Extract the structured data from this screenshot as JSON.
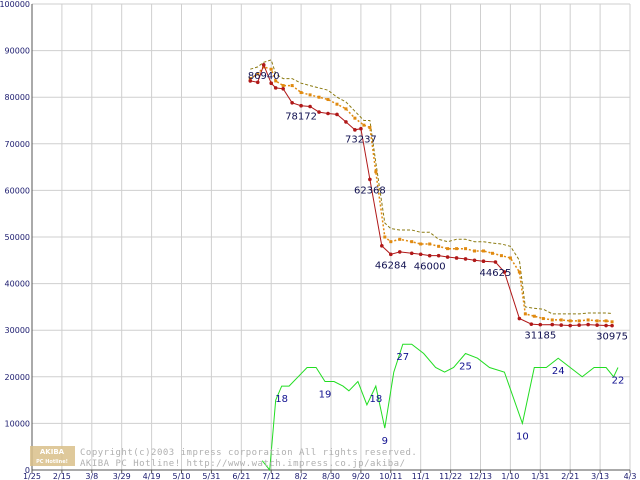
{
  "chart_data": {
    "type": "line",
    "categories": [
      "1/25",
      "2/15",
      "3/8",
      "3/29",
      "4/19",
      "5/10",
      "5/31",
      "6/21",
      "7/12",
      "8/2",
      "8/30",
      "9/20",
      "10/11",
      "11/1",
      "11/22",
      "12/13",
      "1/10",
      "1/31",
      "2/21",
      "3/13",
      "4/3"
    ],
    "ylim": [
      0,
      100000
    ],
    "yticks": [
      0,
      10000,
      20000,
      30000,
      40000,
      50000,
      60000,
      70000,
      80000,
      90000,
      100000
    ],
    "grid": true,
    "series": [
      {
        "key": "price_max",
        "color": "#8b7a10",
        "style": "dashed",
        "points": [
          [
            7.3,
            86000
          ],
          [
            7.55,
            86500
          ],
          [
            7.75,
            87500
          ],
          [
            8.0,
            88000
          ],
          [
            8.15,
            85000
          ],
          [
            8.4,
            84000
          ],
          [
            8.7,
            84000
          ],
          [
            9.0,
            83000
          ],
          [
            9.3,
            82500
          ],
          [
            9.6,
            82000
          ],
          [
            9.9,
            81500
          ],
          [
            10.2,
            80000
          ],
          [
            10.5,
            79000
          ],
          [
            10.8,
            77000
          ],
          [
            11.1,
            75000
          ],
          [
            11.3,
            75000
          ],
          [
            11.5,
            66000
          ],
          [
            11.8,
            53000
          ],
          [
            12.0,
            51800
          ],
          [
            12.3,
            51500
          ],
          [
            12.7,
            51500
          ],
          [
            13.0,
            51000
          ],
          [
            13.3,
            51000
          ],
          [
            13.6,
            49500
          ],
          [
            13.9,
            49000
          ],
          [
            14.2,
            49500
          ],
          [
            14.5,
            49500
          ],
          [
            14.8,
            49000
          ],
          [
            15.1,
            49000
          ],
          [
            15.4,
            48700
          ],
          [
            15.7,
            48500
          ],
          [
            16.0,
            48000
          ],
          [
            16.3,
            45000
          ],
          [
            16.5,
            35000
          ],
          [
            16.8,
            34700
          ],
          [
            17.1,
            34500
          ],
          [
            17.4,
            33500
          ],
          [
            17.7,
            33500
          ],
          [
            18.0,
            33500
          ],
          [
            18.3,
            33500
          ],
          [
            18.6,
            33700
          ],
          [
            18.9,
            33700
          ],
          [
            19.2,
            33700
          ],
          [
            19.4,
            33600
          ]
        ]
      },
      {
        "key": "price_avg",
        "color": "#e08a10",
        "style": "dotted-markers",
        "points": [
          [
            7.3,
            84000
          ],
          [
            7.55,
            85000
          ],
          [
            7.75,
            86500
          ],
          [
            8.0,
            86000
          ],
          [
            8.15,
            83500
          ],
          [
            8.4,
            82500
          ],
          [
            8.7,
            82500
          ],
          [
            9.0,
            81000
          ],
          [
            9.3,
            80500
          ],
          [
            9.6,
            80000
          ],
          [
            9.9,
            79500
          ],
          [
            10.2,
            78500
          ],
          [
            10.5,
            77500
          ],
          [
            10.8,
            75500
          ],
          [
            11.1,
            74000
          ],
          [
            11.3,
            73500
          ],
          [
            11.5,
            64000
          ],
          [
            11.8,
            50000
          ],
          [
            12.0,
            49000
          ],
          [
            12.3,
            49500
          ],
          [
            12.7,
            49000
          ],
          [
            13.0,
            48500
          ],
          [
            13.3,
            48500
          ],
          [
            13.6,
            48000
          ],
          [
            13.9,
            47500
          ],
          [
            14.2,
            47500
          ],
          [
            14.5,
            47500
          ],
          [
            14.8,
            47000
          ],
          [
            15.1,
            47000
          ],
          [
            15.4,
            46500
          ],
          [
            15.7,
            46000
          ],
          [
            16.0,
            45500
          ],
          [
            16.3,
            42500
          ],
          [
            16.5,
            33500
          ],
          [
            16.8,
            33000
          ],
          [
            17.1,
            32500
          ],
          [
            17.4,
            32200
          ],
          [
            17.7,
            32200
          ],
          [
            18.0,
            32000
          ],
          [
            18.3,
            32000
          ],
          [
            18.6,
            32200
          ],
          [
            18.9,
            32000
          ],
          [
            19.2,
            32000
          ],
          [
            19.4,
            31800
          ]
        ]
      },
      {
        "key": "price_min",
        "color": "#b01818",
        "style": "solid-markers",
        "points": [
          [
            7.3,
            83500
          ],
          [
            7.55,
            83200
          ],
          [
            7.75,
            86940
          ],
          [
            8.0,
            83000
          ],
          [
            8.15,
            82000
          ],
          [
            8.4,
            81800
          ],
          [
            8.7,
            78800
          ],
          [
            9.0,
            78172
          ],
          [
            9.3,
            78000
          ],
          [
            9.6,
            76800
          ],
          [
            9.9,
            76500
          ],
          [
            10.2,
            76300
          ],
          [
            10.5,
            74700
          ],
          [
            10.8,
            73000
          ],
          [
            11.0,
            73237
          ],
          [
            11.3,
            62368
          ],
          [
            11.7,
            48100
          ],
          [
            12.0,
            46284
          ],
          [
            12.3,
            46800
          ],
          [
            12.7,
            46500
          ],
          [
            13.0,
            46300
          ],
          [
            13.3,
            46000
          ],
          [
            13.6,
            46000
          ],
          [
            13.9,
            45700
          ],
          [
            14.2,
            45500
          ],
          [
            14.5,
            45300
          ],
          [
            14.8,
            45000
          ],
          [
            15.1,
            44800
          ],
          [
            15.5,
            44625
          ],
          [
            15.8,
            42500
          ],
          [
            16.3,
            32500
          ],
          [
            16.7,
            31300
          ],
          [
            17.0,
            31185
          ],
          [
            17.4,
            31200
          ],
          [
            17.7,
            31100
          ],
          [
            18.0,
            31000
          ],
          [
            18.3,
            31100
          ],
          [
            18.6,
            31200
          ],
          [
            18.9,
            31100
          ],
          [
            19.2,
            31000
          ],
          [
            19.4,
            30975
          ]
        ]
      },
      {
        "key": "shop_count",
        "color": "#22dd22",
        "style": "solid",
        "scale": 1000,
        "points": [
          [
            7.7,
            2000
          ],
          [
            7.95,
            0
          ],
          [
            8.15,
            15000
          ],
          [
            8.35,
            18000
          ],
          [
            8.6,
            18000
          ],
          [
            8.9,
            20000
          ],
          [
            9.2,
            22000
          ],
          [
            9.5,
            22000
          ],
          [
            9.8,
            19000
          ],
          [
            10.1,
            19000
          ],
          [
            10.4,
            18000
          ],
          [
            10.6,
            17000
          ],
          [
            10.9,
            19000
          ],
          [
            11.2,
            14000
          ],
          [
            11.5,
            18000
          ],
          [
            11.8,
            9000
          ],
          [
            12.1,
            21000
          ],
          [
            12.4,
            27000
          ],
          [
            12.7,
            27000
          ],
          [
            13.1,
            25000
          ],
          [
            13.5,
            22000
          ],
          [
            13.8,
            21000
          ],
          [
            14.1,
            22000
          ],
          [
            14.5,
            25000
          ],
          [
            14.9,
            24000
          ],
          [
            15.3,
            22000
          ],
          [
            15.8,
            21000
          ],
          [
            16.4,
            10000
          ],
          [
            16.8,
            22000
          ],
          [
            17.2,
            22000
          ],
          [
            17.6,
            24000
          ],
          [
            18.0,
            22000
          ],
          [
            18.4,
            20000
          ],
          [
            18.8,
            22000
          ],
          [
            19.2,
            22000
          ],
          [
            19.45,
            20000
          ],
          [
            19.6,
            22000
          ]
        ]
      }
    ],
    "data_labels": [
      {
        "text": "86940",
        "x": 7.75,
        "y": 86940,
        "series": "price_min"
      },
      {
        "text": "78172",
        "x": 9.0,
        "y": 78172,
        "series": "price_min"
      },
      {
        "text": "73237",
        "x": 11.0,
        "y": 73237,
        "series": "price_min"
      },
      {
        "text": "62368",
        "x": 11.3,
        "y": 62368,
        "series": "price_min"
      },
      {
        "text": "46284",
        "x": 12.0,
        "y": 46284,
        "series": "price_min"
      },
      {
        "text": "46000",
        "x": 13.3,
        "y": 46000,
        "series": "price_min"
      },
      {
        "text": "44625",
        "x": 15.5,
        "y": 44625,
        "series": "price_min"
      },
      {
        "text": "31185",
        "x": 17.0,
        "y": 31185,
        "series": "price_min"
      },
      {
        "text": "30975",
        "x": 19.4,
        "y": 30975,
        "series": "price_min"
      }
    ],
    "count_labels": [
      {
        "text": "18",
        "x": 8.35,
        "y": 18000
      },
      {
        "text": "19",
        "x": 9.8,
        "y": 19000
      },
      {
        "text": "18",
        "x": 11.5,
        "y": 18000
      },
      {
        "text": "9",
        "x": 11.8,
        "y": 9000
      },
      {
        "text": "27",
        "x": 12.4,
        "y": 27000
      },
      {
        "text": "25",
        "x": 14.5,
        "y": 25000
      },
      {
        "text": "10",
        "x": 16.4,
        "y": 10000
      },
      {
        "text": "24",
        "x": 17.6,
        "y": 24000
      },
      {
        "text": "22",
        "x": 19.6,
        "y": 22000
      }
    ]
  },
  "watermark": {
    "logo_top": "AKIBA",
    "logo_bottom": "PC Hotline!",
    "line1": "Copyright(c)2003 impress corporation All rights reserved.",
    "line2": "AKIBA PC Hotline!  http://www.watch.impress.co.jp/akiba/"
  }
}
